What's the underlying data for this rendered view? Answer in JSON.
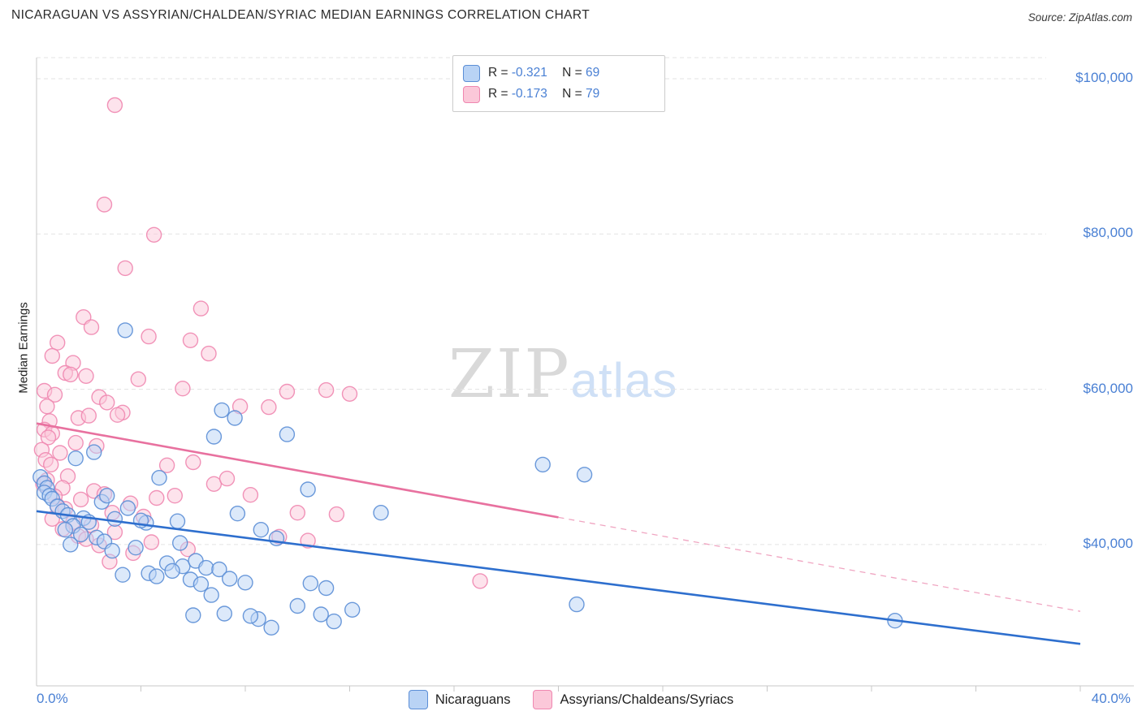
{
  "header": {
    "title": "NICARAGUAN VS ASSYRIAN/CHALDEAN/SYRIAC MEDIAN EARNINGS CORRELATION CHART",
    "source": "Source: ZipAtlas.com"
  },
  "watermark": {
    "part1": "ZIP",
    "part2": "atlas"
  },
  "axes": {
    "y_label": "Median Earnings",
    "x_min_label": "0.0%",
    "x_max_label": "40.0%"
  },
  "legend_stats": {
    "rows": [
      {
        "series": "Nicaraguans",
        "r_label": "R =",
        "r_value": "-0.321",
        "n_label": "N =",
        "n_value": "69"
      },
      {
        "series": "Assyrians/Chaldeans/Syriacs",
        "r_label": "R =",
        "r_value": "-0.173",
        "n_label": "N =",
        "n_value": "79"
      }
    ]
  },
  "colors": {
    "accent": "#4a80d4",
    "title": "#2b2b2b",
    "grid": "#e3e3e3",
    "axis_line": "#c8c8c8",
    "watermark_zip": "#d9d9d9",
    "watermark_atlas": "#cfe0f6"
  },
  "chart_data": {
    "type": "scatter",
    "title": "NICARAGUAN VS ASSYRIAN/CHALDEAN/SYRIAC MEDIAN EARNINGS CORRELATION CHART",
    "xlabel": "",
    "ylabel": "Median Earnings",
    "xlim": [
      0,
      40
    ],
    "ylim": [
      21800,
      100000
    ],
    "grid": "horizontal-dashed",
    "legend_position": "bottom-center",
    "x_tick_labels": [
      "0.0%",
      "40.0%"
    ],
    "y_ticks": [
      {
        "value": 100000,
        "label": "$100,000"
      },
      {
        "value": 80000,
        "label": "$80,000"
      },
      {
        "value": 60000,
        "label": "$60,000"
      },
      {
        "value": 40000,
        "label": "$40,000"
      }
    ],
    "series": [
      {
        "name": "Nicaraguans",
        "R": -0.321,
        "N": 69,
        "fill": "#b9d3f5",
        "color": "#5b8ed6",
        "points": [
          [
            3.4,
            67600
          ],
          [
            7.1,
            57300
          ],
          [
            7.6,
            56300
          ],
          [
            6.8,
            53900
          ],
          [
            9.6,
            54200
          ],
          [
            0.15,
            48700
          ],
          [
            0.3,
            47900
          ],
          [
            0.4,
            47300
          ],
          [
            0.3,
            46700
          ],
          [
            0.5,
            46300
          ],
          [
            0.6,
            45900
          ],
          [
            1.5,
            51100
          ],
          [
            2.2,
            51900
          ],
          [
            0.8,
            44900
          ],
          [
            1.0,
            44300
          ],
          [
            1.2,
            43800
          ],
          [
            2.5,
            45500
          ],
          [
            2.7,
            46300
          ],
          [
            1.8,
            43400
          ],
          [
            2.0,
            42900
          ],
          [
            1.4,
            42400
          ],
          [
            1.1,
            41900
          ],
          [
            1.7,
            41300
          ],
          [
            2.3,
            40900
          ],
          [
            2.6,
            40400
          ],
          [
            1.3,
            40000
          ],
          [
            3.5,
            44700
          ],
          [
            3.0,
            43300
          ],
          [
            4.2,
            42800
          ],
          [
            4.0,
            43100
          ],
          [
            4.7,
            48600
          ],
          [
            5.4,
            43000
          ],
          [
            3.8,
            39600
          ],
          [
            2.9,
            39200
          ],
          [
            3.3,
            36100
          ],
          [
            4.3,
            36300
          ],
          [
            4.6,
            35900
          ],
          [
            5.0,
            37600
          ],
          [
            5.6,
            37200
          ],
          [
            6.1,
            37900
          ],
          [
            6.5,
            37000
          ],
          [
            5.2,
            36600
          ],
          [
            5.9,
            35500
          ],
          [
            6.3,
            34900
          ],
          [
            7.0,
            36800
          ],
          [
            6.7,
            33500
          ],
          [
            6.0,
            30900
          ],
          [
            7.4,
            35600
          ],
          [
            8.0,
            35100
          ],
          [
            7.2,
            31100
          ],
          [
            8.5,
            30400
          ],
          [
            9.0,
            29300
          ],
          [
            8.2,
            30800
          ],
          [
            10.5,
            35000
          ],
          [
            10.0,
            32100
          ],
          [
            10.9,
            31000
          ],
          [
            11.4,
            30100
          ],
          [
            11.1,
            34400
          ],
          [
            12.1,
            31600
          ],
          [
            13.2,
            44100
          ],
          [
            10.4,
            47100
          ],
          [
            8.6,
            41900
          ],
          [
            9.2,
            40800
          ],
          [
            7.7,
            44000
          ],
          [
            19.4,
            50300
          ],
          [
            21.0,
            49000
          ],
          [
            20.7,
            32300
          ],
          [
            32.9,
            30200
          ],
          [
            5.5,
            40200
          ]
        ]
      },
      {
        "name": "Assyrians/Chaldeans/Syriacs",
        "R": -0.173,
        "N": 79,
        "fill": "#fbc8d9",
        "color": "#ef87b0",
        "points": [
          [
            3.0,
            96600
          ],
          [
            2.6,
            83800
          ],
          [
            4.5,
            79900
          ],
          [
            3.4,
            75600
          ],
          [
            6.3,
            70400
          ],
          [
            1.8,
            69300
          ],
          [
            2.1,
            68000
          ],
          [
            4.3,
            66800
          ],
          [
            5.9,
            66300
          ],
          [
            0.8,
            66000
          ],
          [
            6.6,
            64600
          ],
          [
            0.6,
            64300
          ],
          [
            1.4,
            63400
          ],
          [
            1.1,
            62100
          ],
          [
            1.9,
            61700
          ],
          [
            3.9,
            61300
          ],
          [
            1.3,
            61900
          ],
          [
            0.3,
            59800
          ],
          [
            0.7,
            59300
          ],
          [
            2.4,
            59000
          ],
          [
            5.6,
            60100
          ],
          [
            2.7,
            58300
          ],
          [
            0.4,
            57800
          ],
          [
            3.3,
            57000
          ],
          [
            9.6,
            59700
          ],
          [
            11.1,
            59900
          ],
          [
            8.9,
            57700
          ],
          [
            0.5,
            55900
          ],
          [
            1.6,
            56300
          ],
          [
            2.0,
            56600
          ],
          [
            0.3,
            54800
          ],
          [
            0.6,
            54300
          ],
          [
            0.45,
            53800
          ],
          [
            1.5,
            53100
          ],
          [
            2.3,
            52700
          ],
          [
            0.2,
            52200
          ],
          [
            3.1,
            56700
          ],
          [
            0.9,
            51800
          ],
          [
            0.35,
            50900
          ],
          [
            0.55,
            50300
          ],
          [
            5.0,
            50200
          ],
          [
            6.0,
            50600
          ],
          [
            1.2,
            48800
          ],
          [
            0.4,
            48300
          ],
          [
            0.25,
            47800
          ],
          [
            1.0,
            47300
          ],
          [
            2.2,
            46900
          ],
          [
            2.6,
            46500
          ],
          [
            0.7,
            46200
          ],
          [
            1.7,
            45800
          ],
          [
            3.6,
            45300
          ],
          [
            4.6,
            46000
          ],
          [
            5.3,
            46300
          ],
          [
            6.8,
            47800
          ],
          [
            7.3,
            48500
          ],
          [
            0.8,
            45000
          ],
          [
            1.1,
            44600
          ],
          [
            2.9,
            44100
          ],
          [
            4.1,
            43600
          ],
          [
            0.6,
            43300
          ],
          [
            1.4,
            42900
          ],
          [
            2.1,
            42500
          ],
          [
            1.0,
            42000
          ],
          [
            3.0,
            41600
          ],
          [
            1.6,
            41100
          ],
          [
            1.9,
            40700
          ],
          [
            4.4,
            40300
          ],
          [
            2.4,
            39900
          ],
          [
            5.8,
            39400
          ],
          [
            3.7,
            38900
          ],
          [
            2.8,
            37800
          ],
          [
            9.3,
            41000
          ],
          [
            10.4,
            40500
          ],
          [
            8.2,
            46400
          ],
          [
            17.0,
            35300
          ],
          [
            10.0,
            44100
          ],
          [
            7.8,
            57800
          ],
          [
            12.0,
            59400
          ],
          [
            11.5,
            43900
          ]
        ]
      }
    ],
    "trend_lines": [
      {
        "series": "Nicaraguans",
        "x1": 0,
        "y1": 44300,
        "x2": 40,
        "y2": 27200,
        "color": "#2e6fce",
        "dashed": false
      },
      {
        "series": "Assyrians/Chaldeans/Syriacs",
        "x1": 0,
        "y1": 55600,
        "x2": 20,
        "y2": 43500,
        "color": "#e8719f",
        "dashed": false
      },
      {
        "series": "Assyrians/Chaldeans/Syriacs",
        "x1": 20,
        "y1": 43500,
        "x2": 40,
        "y2": 31400,
        "color": "#f0a6c2",
        "dashed": true
      }
    ]
  }
}
